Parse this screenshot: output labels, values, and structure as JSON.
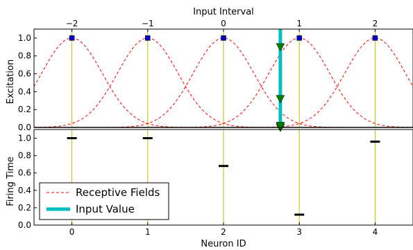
{
  "chart_data": [
    {
      "type": "line",
      "panel": "top",
      "title": "",
      "xlabel_top": "Input Interval",
      "ylabel": "Excitation",
      "x_top_ticks": [
        -2,
        -1,
        0,
        1,
        2
      ],
      "x_top_tick_labels": [
        "−2",
        "−1",
        "0",
        "1",
        "2"
      ],
      "y_ticks": [
        0.0,
        0.2,
        0.4,
        0.6,
        0.8,
        1.0
      ],
      "y_tick_labels": [
        "0.0",
        "0.2",
        "0.4",
        "0.6",
        "0.8",
        "1.0"
      ],
      "xlim": [
        -0.5,
        4.5
      ],
      "ylim": [
        0,
        1.1
      ],
      "neuron_centers": [
        0,
        1,
        2,
        3,
        4
      ],
      "receptive_field_sigma": 0.4,
      "peaks": {
        "x": [
          0,
          1,
          2,
          3,
          4
        ],
        "y": [
          1.0,
          1.0,
          1.0,
          1.0,
          1.0
        ]
      },
      "input_value_x": 2.75,
      "excitation_at_input": [
        0.0,
        0.0,
        0.02,
        0.32,
        0.9
      ],
      "series": [
        {
          "name": "Receptive Fields",
          "style": "dashed",
          "color": "#ff0000"
        },
        {
          "name": "Input Value",
          "style": "solid",
          "color": "#00bfbf"
        }
      ]
    },
    {
      "type": "scatter",
      "panel": "bottom",
      "xlabel": "Neuron ID",
      "ylabel": "Firing Time",
      "x_ticks": [
        0,
        1,
        2,
        3,
        4
      ],
      "x_tick_labels": [
        "0",
        "1",
        "2",
        "3",
        "4"
      ],
      "y_ticks": [
        0.0,
        0.2,
        0.4,
        0.6,
        0.8,
        1.0
      ],
      "y_tick_labels": [
        "0.0",
        "0.2",
        "0.4",
        "0.6",
        "0.8",
        "1.0"
      ],
      "xlim": [
        -0.5,
        4.5
      ],
      "ylim": [
        0,
        1.1
      ],
      "x": [
        0,
        1,
        2,
        3,
        4
      ],
      "firing_times": [
        1.0,
        1.0,
        0.68,
        0.12,
        0.96
      ]
    }
  ],
  "legend": {
    "placement": "bottom-left",
    "items": [
      {
        "label": "Receptive Fields",
        "style": "dashed",
        "color": "#ff0000"
      },
      {
        "label": "Input Value",
        "style": "solid",
        "color": "#00bfbf"
      }
    ]
  },
  "colors": {
    "field": "#ff0000",
    "input": "#00bfbf",
    "center_line": "#bfbf00",
    "peak_marker": "#0000cc",
    "intersect_marker": "#008000",
    "firing_marker": "#000000"
  }
}
